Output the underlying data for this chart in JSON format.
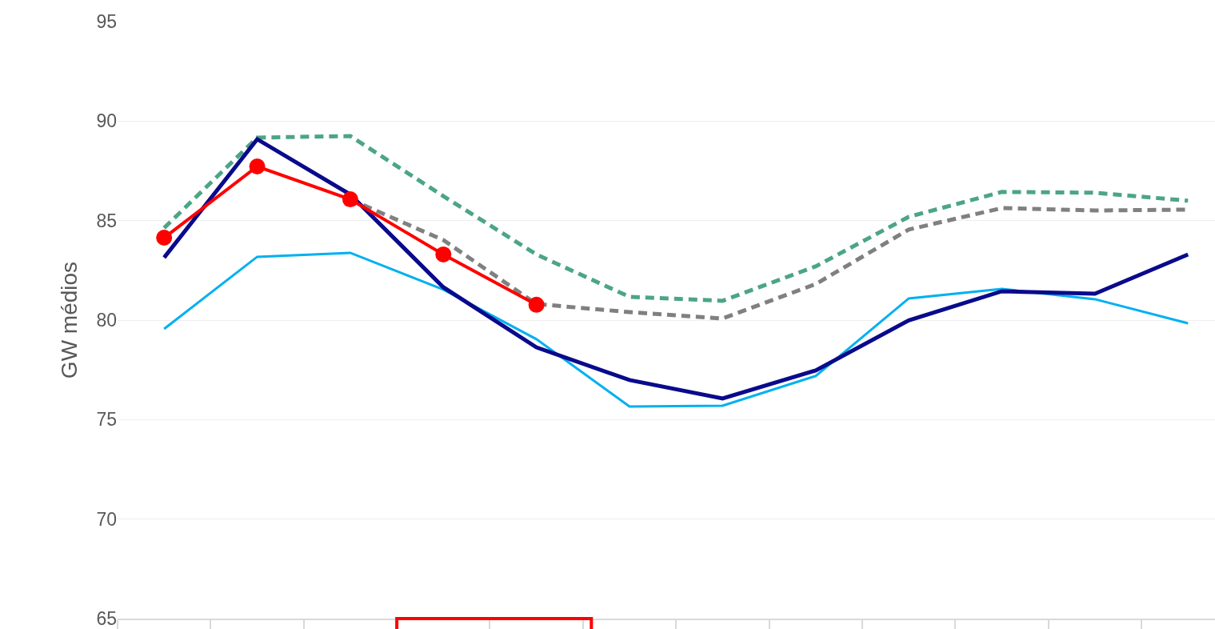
{
  "chart_data": {
    "type": "line",
    "ylabel": "GW médios",
    "categories": [
      null,
      null,
      null,
      null,
      null,
      null,
      null,
      null,
      null,
      null,
      null,
      null
    ],
    "ylim": [
      65,
      95
    ],
    "yticks": [
      65,
      70,
      75,
      80,
      85,
      90,
      95
    ],
    "grid": "y",
    "tick_labels": "y",
    "series": [
      {
        "color": "#00b0f0",
        "line_style": "solid",
        "marker": "none",
        "values": [
          79.56,
          83.18,
          83.38,
          81.53,
          79.04,
          75.66,
          75.7,
          77.19,
          81.09,
          81.57,
          81.05,
          79.84
        ]
      },
      {
        "color": "#4ca585",
        "line_style": "dashed",
        "marker": "none",
        "values": [
          84.63,
          89.17,
          89.25,
          86.23,
          83.3,
          81.17,
          80.97,
          82.7,
          85.19,
          86.44,
          86.4,
          86.0
        ]
      },
      {
        "color": "#808080",
        "line_style": "dashed",
        "marker": "none",
        "values": [
          null,
          null,
          86.07,
          84.02,
          80.81,
          80.4,
          80.08,
          81.81,
          84.55,
          85.63,
          85.51,
          85.55
        ]
      },
      {
        "color": "#0a0a8c",
        "line_style": "solid",
        "marker": "none",
        "values": [
          83.14,
          89.09,
          86.31,
          81.65,
          78.63,
          76.99,
          76.06,
          77.47,
          79.99,
          81.45,
          81.33,
          83.3
        ]
      },
      {
        "color": "#ff0000",
        "line_style": "solid",
        "marker": "circle",
        "values": [
          84.14,
          87.72,
          86.07,
          83.3,
          80.77,
          null,
          null,
          null,
          null,
          null,
          null,
          null
        ]
      }
    ]
  }
}
